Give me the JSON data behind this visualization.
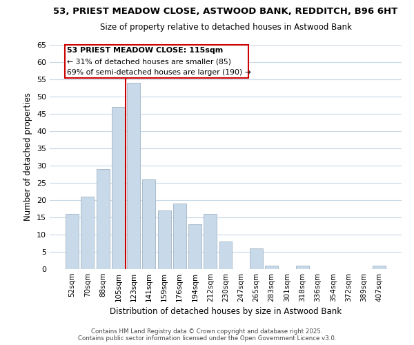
{
  "title": "53, PRIEST MEADOW CLOSE, ASTWOOD BANK, REDDITCH, B96 6HT",
  "subtitle": "Size of property relative to detached houses in Astwood Bank",
  "xlabel": "Distribution of detached houses by size in Astwood Bank",
  "ylabel": "Number of detached properties",
  "bar_color": "#c8daea",
  "bar_edge_color": "#aabbcc",
  "grid_color": "#c8d8e8",
  "annotation_box_color": "#ffffff",
  "annotation_border_color": "#cc0000",
  "vline_color": "#cc0000",
  "categories": [
    "52sqm",
    "70sqm",
    "88sqm",
    "105sqm",
    "123sqm",
    "141sqm",
    "159sqm",
    "176sqm",
    "194sqm",
    "212sqm",
    "230sqm",
    "247sqm",
    "265sqm",
    "283sqm",
    "301sqm",
    "318sqm",
    "336sqm",
    "354sqm",
    "372sqm",
    "389sqm",
    "407sqm"
  ],
  "values": [
    16,
    21,
    29,
    47,
    54,
    26,
    17,
    19,
    13,
    16,
    8,
    0,
    6,
    1,
    0,
    1,
    0,
    0,
    0,
    0,
    1
  ],
  "ylim": [
    0,
    65
  ],
  "yticks": [
    0,
    5,
    10,
    15,
    20,
    25,
    30,
    35,
    40,
    45,
    50,
    55,
    60,
    65
  ],
  "vline_x": 3.5,
  "annotation_text_line1": "53 PRIEST MEADOW CLOSE: 115sqm",
  "annotation_text_line2": "← 31% of detached houses are smaller (85)",
  "annotation_text_line3": "69% of semi-detached houses are larger (190) →",
  "footer_line1": "Contains HM Land Registry data © Crown copyright and database right 2025.",
  "footer_line2": "Contains public sector information licensed under the Open Government Licence v3.0.",
  "background_color": "#ffffff",
  "plot_bg_color": "#ffffff"
}
